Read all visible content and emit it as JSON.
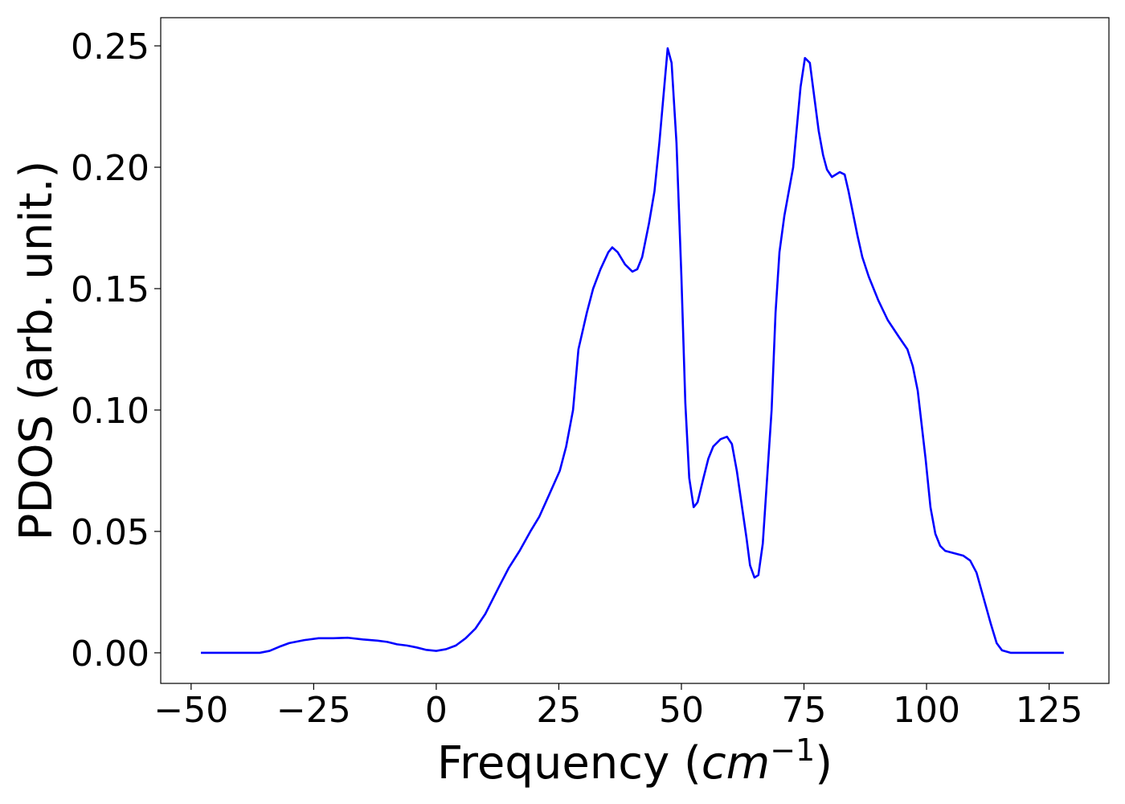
{
  "chart_data": {
    "type": "line",
    "xlabel_parts": [
      "Frequency (",
      "cm",
      "−1",
      ")"
    ],
    "ylabel": "PDOS (arb. unit.)",
    "xlim": [
      -56.2,
      137.2
    ],
    "ylim": [
      -0.0126,
      0.2616
    ],
    "xticks": [
      {
        "value": -50,
        "label": "−50"
      },
      {
        "value": -25,
        "label": "−25"
      },
      0,
      25,
      50,
      75,
      100,
      125
    ],
    "yticks": [
      {
        "value": 0,
        "label": "0.00"
      },
      0.05,
      {
        "value": 0.1,
        "label": "0.10"
      },
      0.15,
      {
        "value": 0.2,
        "label": "0.20"
      },
      0.25
    ],
    "grid": false,
    "series": [
      {
        "name": "PDOS",
        "color": "#0000ff",
        "x": [
          -48,
          -36,
          -34,
          -32,
          -30,
          -27,
          -24,
          -21,
          -18,
          -15,
          -12,
          -10,
          -8,
          -6,
          -4,
          -2,
          0,
          2,
          4,
          6,
          8,
          10,
          11,
          13,
          14.8,
          17,
          19.2,
          21,
          23,
          25.2,
          26.5,
          27.9,
          29,
          30.7,
          32,
          33.5,
          35.1,
          35.9,
          37,
          38.5,
          40,
          41,
          42,
          43.4,
          44.5,
          45.5,
          46.5,
          47.2,
          48,
          49,
          50,
          50.8,
          51.6,
          52.5,
          53.3,
          54.5,
          55.5,
          56.5,
          58,
          59.3,
          60.3,
          61.3,
          63.3,
          64,
          64.9,
          65.7,
          66.6,
          68.4,
          69.2,
          70,
          71,
          72.8,
          74.3,
          75.2,
          76.2,
          78,
          78.9,
          79.7,
          80.7,
          82.3,
          83.3,
          84.1,
          85.9,
          86.9,
          88.2,
          90.2,
          92.1,
          94.4,
          96.1,
          97.2,
          98.2,
          99.8,
          100.8,
          101.8,
          102.8,
          103.8,
          107.5,
          108.9,
          110.2,
          111.3,
          113.1,
          114.3,
          115.4,
          117.2,
          128
        ],
        "values": [
          0,
          0,
          0.0008,
          0.0025,
          0.004,
          0.0052,
          0.006,
          0.006,
          0.0062,
          0.0055,
          0.005,
          0.0045,
          0.0035,
          0.003,
          0.0022,
          0.0012,
          0.0008,
          0.0015,
          0.003,
          0.006,
          0.01,
          0.016,
          0.02,
          0.028,
          0.035,
          0.042,
          0.05,
          0.056,
          0.065,
          0.075,
          0.085,
          0.1,
          0.125,
          0.14,
          0.15,
          0.158,
          0.165,
          0.167,
          0.165,
          0.16,
          0.157,
          0.158,
          0.163,
          0.177,
          0.19,
          0.21,
          0.233,
          0.249,
          0.243,
          0.21,
          0.155,
          0.103,
          0.072,
          0.06,
          0.062,
          0.072,
          0.08,
          0.085,
          0.088,
          0.089,
          0.086,
          0.075,
          0.047,
          0.036,
          0.031,
          0.032,
          0.045,
          0.1,
          0.14,
          0.165,
          0.18,
          0.2,
          0.233,
          0.245,
          0.243,
          0.215,
          0.205,
          0.199,
          0.196,
          0.198,
          0.197,
          0.19,
          0.172,
          0.163,
          0.155,
          0.145,
          0.137,
          0.13,
          0.125,
          0.118,
          0.108,
          0.08,
          0.06,
          0.049,
          0.044,
          0.042,
          0.04,
          0.038,
          0.033,
          0.025,
          0.012,
          0.004,
          0.001,
          0,
          0
        ]
      }
    ]
  }
}
